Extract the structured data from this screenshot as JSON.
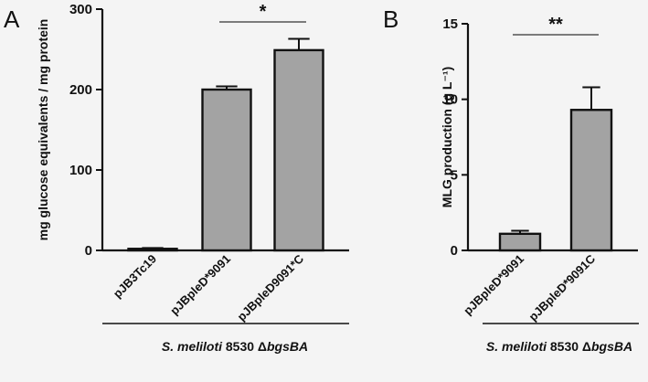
{
  "chart_data": [
    {
      "type": "bar",
      "panel_label": "A",
      "title": "",
      "ylabel": "mg glucose equivalents / mg protein",
      "ylim": [
        0,
        300
      ],
      "yticks": [
        0,
        100,
        200,
        300
      ],
      "categories": [
        "pJB3Tc19",
        "pJBpleD*9091",
        "pJBpleD9091*C"
      ],
      "values": [
        2,
        200,
        249
      ],
      "errors": [
        1,
        4,
        14
      ],
      "bar_color": "#a3a3a3",
      "significance": [
        {
          "from": 1,
          "to": 2,
          "label": "*"
        }
      ],
      "strain_label": {
        "italic": "S. meliloti",
        "plain": " 8530 Δ",
        "italic2": "bgsBA"
      }
    },
    {
      "type": "bar",
      "panel_label": "B",
      "title": "",
      "ylabel": "MLG production (g L⁻¹)",
      "ylim": [
        0,
        15
      ],
      "yticks": [
        0,
        5,
        10,
        15
      ],
      "categories": [
        "pJBpleD*9091",
        "pJBpleD*9091C"
      ],
      "values": [
        1.1,
        9.3
      ],
      "errors": [
        0.2,
        1.5
      ],
      "bar_color": "#a3a3a3",
      "significance": [
        {
          "from": 0,
          "to": 1,
          "label": "**"
        }
      ],
      "strain_label": {
        "italic": "S. meliloti",
        "plain": " 8530 Δ",
        "italic2": "bgsBA"
      }
    }
  ]
}
